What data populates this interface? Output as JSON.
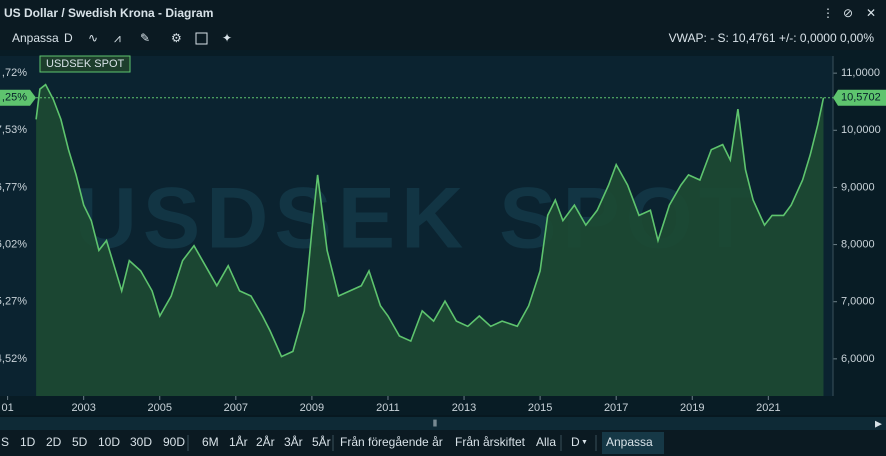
{
  "window": {
    "title": "US Dollar / Swedish Krona - Diagram"
  },
  "toolbar": {
    "items": [
      "Anpassa",
      "D"
    ],
    "vwap": "VWAP: -  S: 10,4761  +/-: 0,0000  0,00%"
  },
  "chart_data": {
    "type": "line",
    "x": [
      2001.75,
      2001.85,
      2002.0,
      2002.2,
      2002.4,
      2002.6,
      2002.8,
      2003.0,
      2003.2,
      2003.4,
      2003.6,
      2003.8,
      2004.0,
      2004.2,
      2004.5,
      2004.8,
      2005.0,
      2005.3,
      2005.6,
      2005.9,
      2006.2,
      2006.5,
      2006.8,
      2007.1,
      2007.4,
      2007.7,
      2007.9,
      2008.2,
      2008.5,
      2008.8,
      2009.0,
      2009.15,
      2009.4,
      2009.7,
      2010.0,
      2010.3,
      2010.5,
      2010.8,
      2011.0,
      2011.3,
      2011.6,
      2011.9,
      2012.2,
      2012.5,
      2012.8,
      2013.1,
      2013.4,
      2013.7,
      2014.0,
      2014.4,
      2014.7,
      2015.0,
      2015.2,
      2015.4,
      2015.6,
      2015.9,
      2016.2,
      2016.5,
      2016.8,
      2017.0,
      2017.3,
      2017.6,
      2017.9,
      2018.1,
      2018.4,
      2018.7,
      2018.9,
      2019.2,
      2019.5,
      2019.8,
      2020.0,
      2020.2,
      2020.4,
      2020.6,
      2020.9,
      2021.1,
      2021.4,
      2021.6,
      2021.9,
      2022.1,
      2022.3,
      2022.45
    ],
    "series": [
      {
        "name": "USDSEK SPOT",
        "color": "#5ec46e",
        "values": [
          10.19,
          10.72,
          10.8,
          10.54,
          10.19,
          9.66,
          9.22,
          8.69,
          8.42,
          7.9,
          8.07,
          7.63,
          7.19,
          7.72,
          7.54,
          7.19,
          6.75,
          7.1,
          7.72,
          7.98,
          7.63,
          7.28,
          7.63,
          7.19,
          7.1,
          6.75,
          6.49,
          6.04,
          6.13,
          6.84,
          8.25,
          9.22,
          7.9,
          7.1,
          7.19,
          7.28,
          7.54,
          6.93,
          6.75,
          6.4,
          6.31,
          6.84,
          6.66,
          7.01,
          6.66,
          6.57,
          6.75,
          6.57,
          6.66,
          6.57,
          6.93,
          7.54,
          8.51,
          8.78,
          8.42,
          8.69,
          8.34,
          8.6,
          9.04,
          9.4,
          9.04,
          8.51,
          8.6,
          8.07,
          8.69,
          9.04,
          9.22,
          9.13,
          9.66,
          9.75,
          9.48,
          10.37,
          9.31,
          8.78,
          8.34,
          8.51,
          8.51,
          8.69,
          9.13,
          9.57,
          10.1,
          10.57
        ]
      }
    ],
    "current": {
      "value": 10.5702,
      "label": "10,5702",
      "left_label": ",25%"
    },
    "xlim": [
      2000.8,
      2022.7
    ],
    "xticks": [
      {
        "value": 2001,
        "label": "01"
      },
      2003,
      2005,
      2007,
      2009,
      2011,
      2013,
      2015,
      2017,
      2019,
      2021
    ],
    "ylim": [
      5.35,
      11.3
    ],
    "yticks": [
      {
        "value": 11,
        "label": "11,0000"
      },
      {
        "value": 10,
        "label": "10,0000"
      },
      {
        "value": 9,
        "label": "9,0000"
      },
      {
        "value": 8,
        "label": "8,0000"
      },
      {
        "value": 7,
        "label": "7,0000"
      },
      {
        "value": 6,
        "label": "6,0000"
      }
    ],
    "left_tick_labels": [
      ",72%",
      "7,53%",
      "6,77%",
      "6,02%",
      "5,27%",
      "4,52%"
    ]
  },
  "range_bar": {
    "buttons": [
      "S",
      "1D",
      "2D",
      "5D",
      "10D",
      "30D",
      "90D",
      "6M",
      "1År",
      "2År",
      "3År",
      "5År",
      "Från föregående år",
      "Från årskiftet",
      "Alla",
      "D",
      "Anpassa"
    ]
  }
}
